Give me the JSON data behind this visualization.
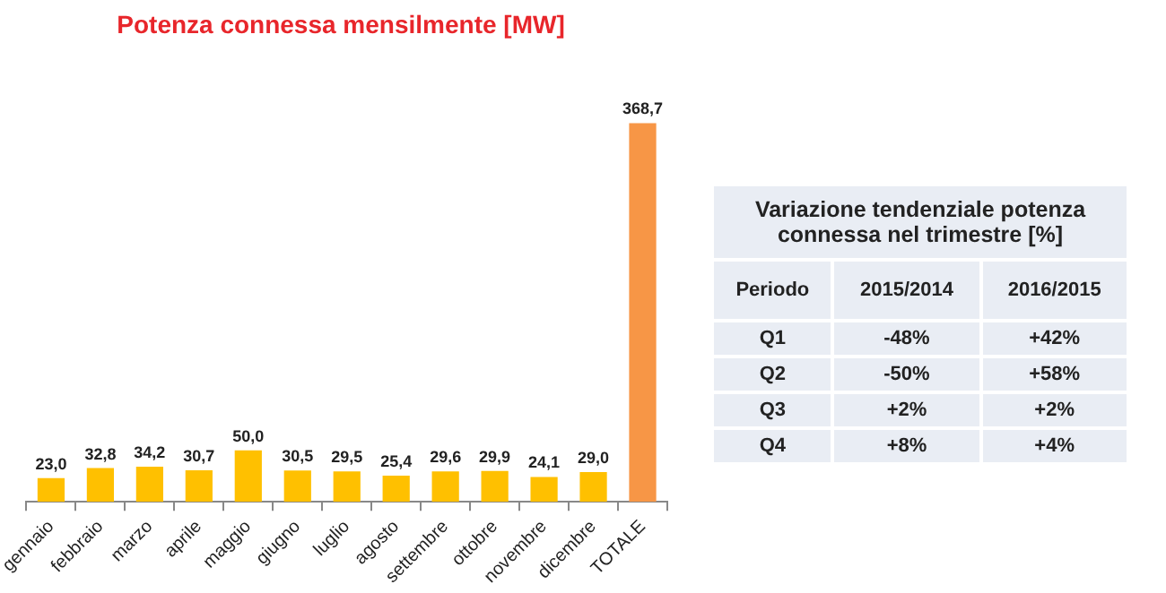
{
  "chart_data": [
    {
      "type": "bar",
      "title": "Potenza connessa mensilmente [MW]",
      "categories": [
        "gennaio",
        "febbraio",
        "marzo",
        "aprile",
        "maggio",
        "giugno",
        "luglio",
        "agosto",
        "settembre",
        "ottobre",
        "novembre",
        "dicembre",
        "TOTALE"
      ],
      "values": [
        23.0,
        32.8,
        34.2,
        30.7,
        50.0,
        30.5,
        29.5,
        25.4,
        29.6,
        29.9,
        24.1,
        29.0,
        368.7
      ],
      "colors": [
        "#ffc000",
        "#ffc000",
        "#ffc000",
        "#ffc000",
        "#ffc000",
        "#ffc000",
        "#ffc000",
        "#ffc000",
        "#ffc000",
        "#ffc000",
        "#ffc000",
        "#ffc000",
        "#f79646"
      ],
      "value_labels": [
        "23,0",
        "32,8",
        "34,2",
        "30,7",
        "50,0",
        "30,5",
        "29,5",
        "25,4",
        "29,6",
        "29,9",
        "24,1",
        "29,0",
        "368,7"
      ],
      "grid": false,
      "legend": false
    },
    {
      "type": "other",
      "title": "Variazione tendenziale potenza connessa nel trimestre [%]",
      "categories": [
        "Periodo",
        "2015/2014",
        "2016/2015"
      ],
      "y_categories": [
        "Q1",
        "Q2",
        "Q3",
        "Q4"
      ],
      "cell_labels": [
        [
          "-48%",
          "+42%"
        ],
        [
          "-50%",
          "+58%"
        ],
        [
          "+2%",
          "+2%"
        ],
        [
          "+8%",
          "+4%"
        ]
      ]
    }
  ]
}
